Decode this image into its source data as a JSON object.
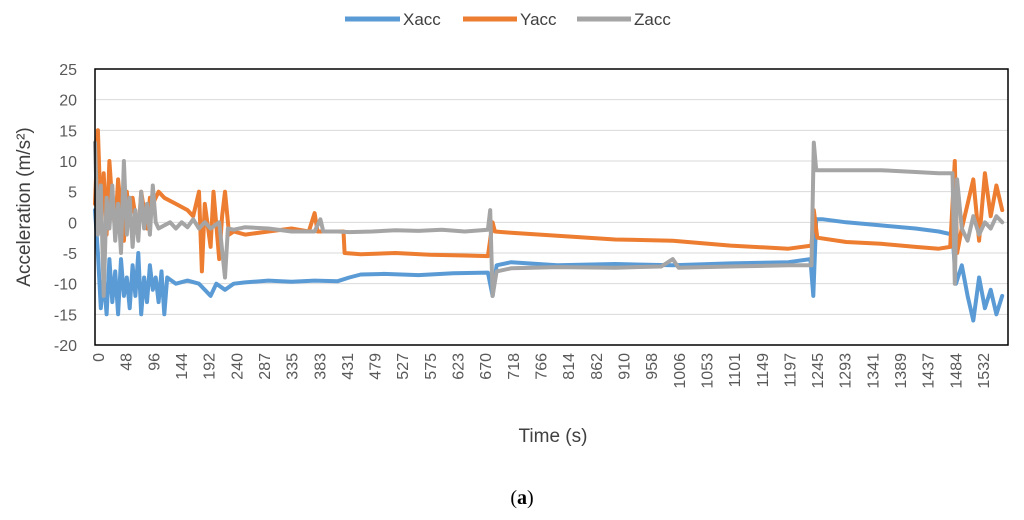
{
  "chart_data": {
    "type": "line",
    "title": "",
    "xlabel": "Time (s)",
    "ylabel": "Acceleration (m/s²)",
    "ylim": [
      -20,
      25
    ],
    "yticks": [
      -20,
      -15,
      -10,
      -5,
      0,
      5,
      10,
      15,
      20,
      25
    ],
    "xlim": [
      0,
      1580
    ],
    "xtick_labels": [
      "0",
      "48",
      "96",
      "144",
      "192",
      "240",
      "287",
      "335",
      "383",
      "431",
      "479",
      "527",
      "575",
      "623",
      "670",
      "718",
      "766",
      "814",
      "862",
      "910",
      "958",
      "1006",
      "1053",
      "1101",
      "1149",
      "1197",
      "1245",
      "1293",
      "1341",
      "1389",
      "1437",
      "1484",
      "1532"
    ],
    "grid": true,
    "legend_position": "top-center",
    "series": [
      {
        "name": "Xacc",
        "color": "#5B9BD5",
        "points": [
          [
            0,
            2
          ],
          [
            5,
            -5
          ],
          [
            10,
            -14
          ],
          [
            15,
            -9
          ],
          [
            20,
            -15
          ],
          [
            25,
            -6
          ],
          [
            30,
            -13
          ],
          [
            35,
            -8
          ],
          [
            40,
            -15
          ],
          [
            45,
            -6
          ],
          [
            50,
            -12
          ],
          [
            55,
            -9
          ],
          [
            60,
            -14
          ],
          [
            65,
            -7
          ],
          [
            70,
            -12
          ],
          [
            75,
            -5
          ],
          [
            80,
            -15
          ],
          [
            85,
            -9
          ],
          [
            90,
            -13
          ],
          [
            95,
            -7
          ],
          [
            100,
            -11
          ],
          [
            105,
            -9
          ],
          [
            110,
            -13
          ],
          [
            115,
            -8
          ],
          [
            120,
            -15
          ],
          [
            125,
            -9
          ],
          [
            140,
            -10
          ],
          [
            160,
            -9.5
          ],
          [
            180,
            -10
          ],
          [
            200,
            -12
          ],
          [
            210,
            -10
          ],
          [
            225,
            -11
          ],
          [
            240,
            -10
          ],
          [
            260,
            -9.8
          ],
          [
            300,
            -9.5
          ],
          [
            340,
            -9.7
          ],
          [
            380,
            -9.5
          ],
          [
            420,
            -9.6
          ],
          [
            440,
            -9
          ],
          [
            460,
            -8.5
          ],
          [
            500,
            -8.4
          ],
          [
            560,
            -8.6
          ],
          [
            620,
            -8.3
          ],
          [
            680,
            -8.2
          ],
          [
            688,
            -12
          ],
          [
            695,
            -7
          ],
          [
            720,
            -6.5
          ],
          [
            800,
            -7
          ],
          [
            900,
            -6.8
          ],
          [
            1000,
            -7
          ],
          [
            1100,
            -6.7
          ],
          [
            1200,
            -6.5
          ],
          [
            1238,
            -6
          ],
          [
            1243,
            -12
          ],
          [
            1248,
            0.5
          ],
          [
            1260,
            0.5
          ],
          [
            1300,
            0
          ],
          [
            1360,
            -0.5
          ],
          [
            1420,
            -1
          ],
          [
            1460,
            -1.5
          ],
          [
            1484,
            -2
          ],
          [
            1490,
            -10
          ],
          [
            1500,
            -7
          ],
          [
            1510,
            -12
          ],
          [
            1520,
            -16
          ],
          [
            1530,
            -9
          ],
          [
            1540,
            -14
          ],
          [
            1550,
            -11
          ],
          [
            1560,
            -15
          ],
          [
            1570,
            -12
          ]
        ]
      },
      {
        "name": "Yacc",
        "color": "#ED7D31",
        "points": [
          [
            0,
            3
          ],
          [
            5,
            15
          ],
          [
            10,
            1
          ],
          [
            15,
            8
          ],
          [
            20,
            -2
          ],
          [
            25,
            10
          ],
          [
            30,
            3
          ],
          [
            35,
            -1
          ],
          [
            40,
            7
          ],
          [
            45,
            2
          ],
          [
            50,
            -3
          ],
          [
            55,
            5
          ],
          [
            60,
            0
          ],
          [
            65,
            4
          ],
          [
            70,
            1
          ],
          [
            75,
            -2
          ],
          [
            80,
            5
          ],
          [
            85,
            2
          ],
          [
            90,
            -1
          ],
          [
            95,
            4
          ],
          [
            100,
            3
          ],
          [
            110,
            5
          ],
          [
            120,
            4
          ],
          [
            140,
            3
          ],
          [
            160,
            2
          ],
          [
            170,
            1
          ],
          [
            180,
            5
          ],
          [
            185,
            -8
          ],
          [
            190,
            3
          ],
          [
            200,
            -4
          ],
          [
            205,
            5
          ],
          [
            215,
            -6
          ],
          [
            220,
            1
          ],
          [
            225,
            5
          ],
          [
            232,
            -2
          ],
          [
            240,
            -1.5
          ],
          [
            260,
            -2
          ],
          [
            300,
            -1.5
          ],
          [
            340,
            -1
          ],
          [
            370,
            -1.5
          ],
          [
            380,
            1.5
          ],
          [
            385,
            -1.5
          ],
          [
            420,
            -1.5
          ],
          [
            430,
            -1.5
          ],
          [
            432,
            -5
          ],
          [
            460,
            -5.2
          ],
          [
            520,
            -5
          ],
          [
            580,
            -5.3
          ],
          [
            640,
            -5.4
          ],
          [
            680,
            -5.5
          ],
          [
            688,
            0
          ],
          [
            692,
            -1.5
          ],
          [
            720,
            -1.7
          ],
          [
            800,
            -2.2
          ],
          [
            900,
            -2.8
          ],
          [
            1000,
            -3
          ],
          [
            1100,
            -3.8
          ],
          [
            1200,
            -4.3
          ],
          [
            1240,
            -3.8
          ],
          [
            1244,
            2
          ],
          [
            1250,
            -2.5
          ],
          [
            1300,
            -3.2
          ],
          [
            1360,
            -3.5
          ],
          [
            1420,
            -4
          ],
          [
            1460,
            -4.3
          ],
          [
            1480,
            -4
          ],
          [
            1488,
            10
          ],
          [
            1492,
            -5
          ],
          [
            1500,
            -1
          ],
          [
            1510,
            3
          ],
          [
            1520,
            7
          ],
          [
            1530,
            -3
          ],
          [
            1540,
            8
          ],
          [
            1550,
            1
          ],
          [
            1560,
            6
          ],
          [
            1570,
            2
          ]
        ]
      },
      {
        "name": "Zacc",
        "color": "#A5A5A5",
        "points": [
          [
            0,
            13
          ],
          [
            5,
            -2
          ],
          [
            10,
            6
          ],
          [
            15,
            -12
          ],
          [
            20,
            4
          ],
          [
            25,
            -1
          ],
          [
            30,
            6
          ],
          [
            35,
            -3
          ],
          [
            40,
            3
          ],
          [
            45,
            -5
          ],
          [
            50,
            10
          ],
          [
            55,
            -2
          ],
          [
            60,
            4
          ],
          [
            65,
            -4
          ],
          [
            70,
            2
          ],
          [
            75,
            -3
          ],
          [
            80,
            5
          ],
          [
            85,
            -1
          ],
          [
            90,
            3
          ],
          [
            95,
            -2
          ],
          [
            100,
            6
          ],
          [
            105,
            0
          ],
          [
            110,
            -1
          ],
          [
            120,
            -0.5
          ],
          [
            130,
            0
          ],
          [
            140,
            -1
          ],
          [
            150,
            0
          ],
          [
            160,
            -0.8
          ],
          [
            170,
            0.5
          ],
          [
            180,
            -1
          ],
          [
            190,
            0
          ],
          [
            200,
            -1
          ],
          [
            215,
            0
          ],
          [
            225,
            -9
          ],
          [
            230,
            -1
          ],
          [
            240,
            -1.2
          ],
          [
            260,
            -0.8
          ],
          [
            300,
            -1
          ],
          [
            340,
            -1.5
          ],
          [
            380,
            -1.5
          ],
          [
            390,
            0.5
          ],
          [
            395,
            -1.5
          ],
          [
            420,
            -1.5
          ],
          [
            440,
            -1.6
          ],
          [
            480,
            -1.5
          ],
          [
            520,
            -1.3
          ],
          [
            560,
            -1.4
          ],
          [
            600,
            -1.2
          ],
          [
            640,
            -1.5
          ],
          [
            680,
            -1.2
          ],
          [
            684,
            2
          ],
          [
            688,
            -12
          ],
          [
            695,
            -8
          ],
          [
            720,
            -7.5
          ],
          [
            800,
            -7.3
          ],
          [
            900,
            -7.4
          ],
          [
            980,
            -7.2
          ],
          [
            1000,
            -6
          ],
          [
            1010,
            -7.4
          ],
          [
            1100,
            -7.2
          ],
          [
            1200,
            -7
          ],
          [
            1240,
            -7
          ],
          [
            1244,
            13
          ],
          [
            1248,
            8.5
          ],
          [
            1300,
            8.5
          ],
          [
            1360,
            8.5
          ],
          [
            1420,
            8.2
          ],
          [
            1460,
            8
          ],
          [
            1484,
            8
          ],
          [
            1488,
            -10
          ],
          [
            1492,
            7
          ],
          [
            1500,
            -1
          ],
          [
            1510,
            -3
          ],
          [
            1520,
            1
          ],
          [
            1530,
            -2
          ],
          [
            1540,
            0
          ],
          [
            1550,
            -1
          ],
          [
            1560,
            1
          ],
          [
            1570,
            0
          ]
        ]
      }
    ]
  },
  "caption": {
    "text": "a",
    "open": "(",
    "close": ")"
  }
}
